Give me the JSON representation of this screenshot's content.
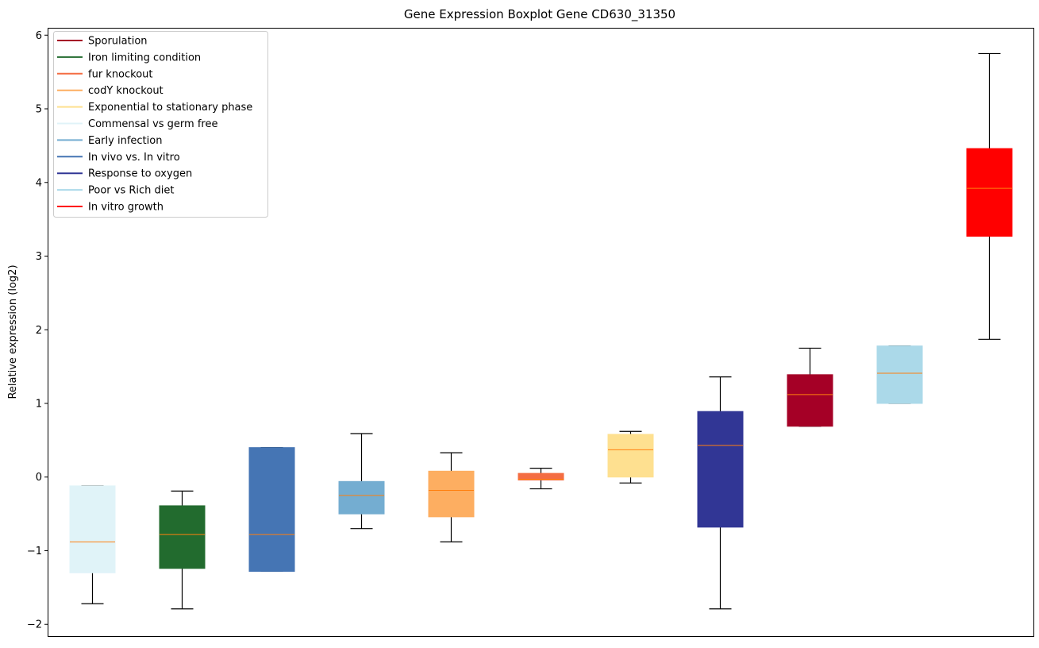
{
  "chart_data": {
    "type": "boxplot",
    "title": "Gene Expression Boxplot Gene CD630_31350",
    "xlabel": "",
    "ylabel": "Relative expression (log2)",
    "ylim": [
      -2.17,
      6.1
    ],
    "yticks": [
      -2,
      -1,
      0,
      1,
      2,
      3,
      4,
      5,
      6
    ],
    "ytick_labels": [
      "−2",
      "−1",
      "0",
      "1",
      "2",
      "3",
      "4",
      "5",
      "6"
    ],
    "grid": false,
    "legend_position": "top-left",
    "median_color": "#ff7f0e",
    "legend": [
      {
        "label": "Sporulation",
        "color": "#a50026"
      },
      {
        "label": "Iron limiting condition",
        "color": "#226b2e"
      },
      {
        "label": "fur knockout",
        "color": "#f46d43"
      },
      {
        "label": "codY knockout",
        "color": "#fdae61"
      },
      {
        "label": "Exponential to stationary phase",
        "color": "#fee090"
      },
      {
        "label": "Commensal vs germ free",
        "color": "#e0f3f8"
      },
      {
        "label": "Early infection",
        "color": "#74add1"
      },
      {
        "label": "In vivo vs. In vitro",
        "color": "#4575b4"
      },
      {
        "label": "Response to oxygen",
        "color": "#313695"
      },
      {
        "label": "Poor vs Rich diet",
        "color": "#abd9e9"
      },
      {
        "label": "In vitro growth",
        "color": "#ff0000"
      }
    ],
    "series": [
      {
        "name": "Commensal vs germ free",
        "color": "#e0f3f8",
        "whislo": -1.72,
        "q1": -1.3,
        "med": -0.88,
        "q3": -0.12,
        "whishi": -0.12
      },
      {
        "name": "Iron limiting condition",
        "color": "#226b2e",
        "whislo": -1.79,
        "q1": -1.24,
        "med": -0.78,
        "q3": -0.39,
        "whishi": -0.19
      },
      {
        "name": "In vivo vs. In vitro",
        "color": "#4575b4",
        "whislo": -1.28,
        "q1": -1.28,
        "med": -0.78,
        "q3": 0.4,
        "whishi": 0.4
      },
      {
        "name": "Early infection",
        "color": "#74add1",
        "whislo": -0.7,
        "q1": -0.5,
        "med": -0.25,
        "q3": -0.06,
        "whishi": 0.59
      },
      {
        "name": "codY knockout",
        "color": "#fdae61",
        "whislo": -0.88,
        "q1": -0.54,
        "med": -0.18,
        "q3": 0.08,
        "whishi": 0.33
      },
      {
        "name": "fur knockout",
        "color": "#f46d43",
        "whislo": -0.16,
        "q1": -0.04,
        "med": -0.03,
        "q3": 0.05,
        "whishi": 0.12
      },
      {
        "name": "Exponential to stationary phase",
        "color": "#fee090",
        "whislo": -0.08,
        "q1": 0.0,
        "med": 0.37,
        "q3": 0.58,
        "whishi": 0.62
      },
      {
        "name": "Response to oxygen",
        "color": "#313695",
        "whislo": -1.79,
        "q1": -0.68,
        "med": 0.43,
        "q3": 0.89,
        "whishi": 1.36
      },
      {
        "name": "Sporulation",
        "color": "#a50026",
        "whislo": 0.69,
        "q1": 0.69,
        "med": 1.12,
        "q3": 1.39,
        "whishi": 1.75
      },
      {
        "name": "Poor vs Rich diet",
        "color": "#abd9e9",
        "whislo": 1.0,
        "q1": 1.0,
        "med": 1.41,
        "q3": 1.78,
        "whishi": 1.78
      },
      {
        "name": "In vitro growth",
        "color": "#ff0000",
        "whislo": 1.87,
        "q1": 3.27,
        "med": 3.92,
        "q3": 4.46,
        "whishi": 5.75
      }
    ]
  }
}
